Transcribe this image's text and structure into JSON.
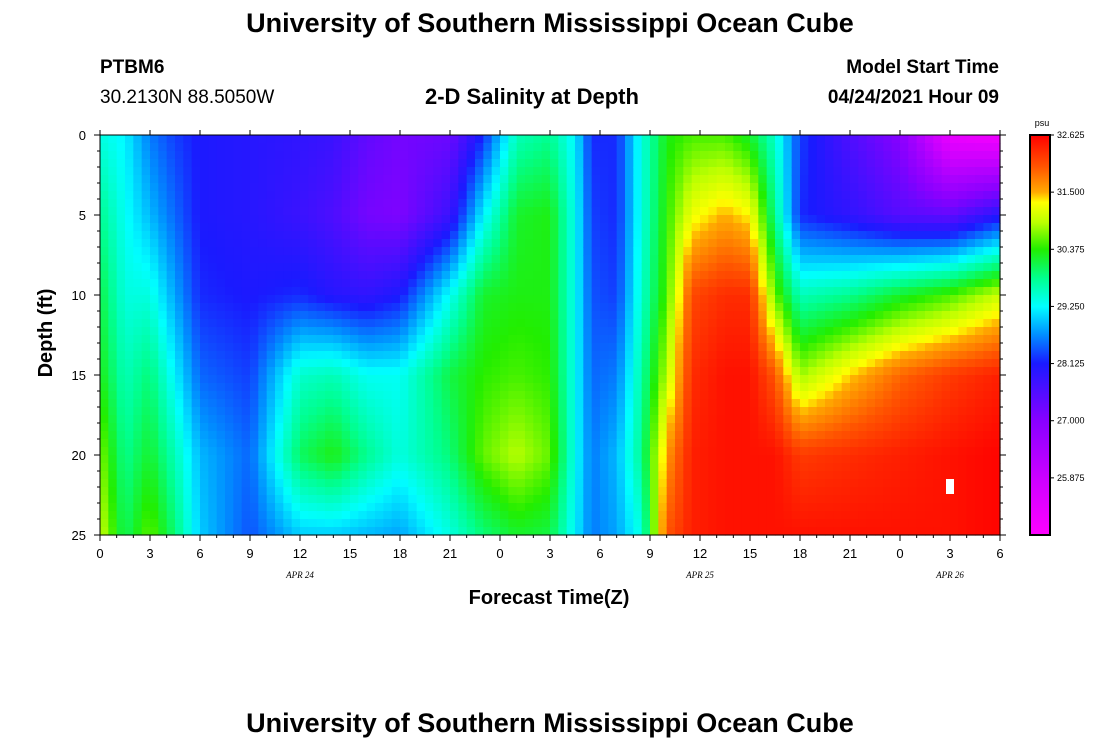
{
  "header": {
    "title": "University of Southern Mississippi Ocean Cube",
    "station_id": "PTBM6",
    "station_coords": "30.2130N  88.5050W",
    "chart_title": "2-D Salinity at Depth",
    "model_start_label": "Model Start Time",
    "model_start_value": "04/24/2021 Hour 09"
  },
  "footer": {
    "title": "University of Southern Mississippi Ocean Cube"
  },
  "chart_data": {
    "type": "heatmap",
    "title": "2-D Salinity at Depth",
    "xlabel": "Forecast Time(Z)",
    "ylabel": "Depth (ft)",
    "x_ticks_hours": [
      0,
      3,
      6,
      9,
      12,
      15,
      18,
      21,
      24,
      27,
      30,
      33,
      36,
      39,
      42,
      45,
      48,
      51,
      54
    ],
    "x_tick_labels": [
      "0",
      "3",
      "6",
      "9",
      "12",
      "15",
      "18",
      "21",
      "0",
      "3",
      "6",
      "9",
      "12",
      "15",
      "18",
      "21",
      "0",
      "3",
      "6"
    ],
    "xlim_hours": [
      0,
      54
    ],
    "date_labels": [
      {
        "text": "APR  24",
        "hour": 12
      },
      {
        "text": "APR  25",
        "hour": 36
      },
      {
        "text": "APR  26",
        "hour": 51
      }
    ],
    "y_ticks": [
      0,
      5,
      10,
      15,
      20,
      25
    ],
    "ylim": [
      0,
      25
    ],
    "y_inverted": true,
    "units": "psu",
    "colorbar": {
      "min": 24.75,
      "max": 32.625,
      "tick_values": [
        32.625,
        31.5,
        30.375,
        29.25,
        28.125,
        27.0,
        25.875
      ],
      "tick_labels": [
        "32.625",
        "31.500",
        "30.375",
        "29.250",
        "28.125",
        "27.000",
        "25.875"
      ],
      "stops": [
        {
          "value": 24.75,
          "color": "#ff00ff"
        },
        {
          "value": 25.875,
          "color": "#cc00ff"
        },
        {
          "value": 27.0,
          "color": "#8800ff"
        },
        {
          "value": 28.125,
          "color": "#1a1aff"
        },
        {
          "value": 28.7,
          "color": "#0090ff"
        },
        {
          "value": 29.25,
          "color": "#00ffff"
        },
        {
          "value": 29.8,
          "color": "#00ff90"
        },
        {
          "value": 30.375,
          "color": "#22ee00"
        },
        {
          "value": 30.9,
          "color": "#bbff00"
        },
        {
          "value": 31.3,
          "color": "#ffff00"
        },
        {
          "value": 31.5,
          "color": "#ffaa00"
        },
        {
          "value": 32.0,
          "color": "#ff5500"
        },
        {
          "value": 32.625,
          "color": "#ff0000"
        }
      ]
    },
    "salinity_profiles": [
      {
        "hour": 0,
        "depths": [
          0,
          5,
          10,
          15,
          20,
          25
        ],
        "values": [
          29.4,
          29.8,
          30.1,
          30.3,
          30.7,
          31.0
        ]
      },
      {
        "hour": 1.5,
        "depths": [
          0,
          5,
          10,
          15,
          20,
          25
        ],
        "values": [
          29.2,
          29.3,
          29.4,
          29.6,
          29.8,
          30.0
        ]
      },
      {
        "hour": 3,
        "depths": [
          0,
          5,
          10,
          15,
          20,
          25
        ],
        "values": [
          28.6,
          28.9,
          29.4,
          29.9,
          30.2,
          30.6
        ]
      },
      {
        "hour": 4.5,
        "depths": [
          0,
          5,
          10,
          15,
          20,
          25
        ],
        "values": [
          28.3,
          28.5,
          28.8,
          29.2,
          29.6,
          29.9
        ]
      },
      {
        "hour": 6,
        "depths": [
          0,
          5,
          10,
          15,
          20,
          25
        ],
        "values": [
          28.1,
          28.1,
          28.2,
          28.5,
          28.9,
          29.0
        ]
      },
      {
        "hour": 9,
        "depths": [
          0,
          5,
          10,
          15,
          20,
          25
        ],
        "values": [
          28.0,
          28.0,
          28.1,
          28.3,
          28.5,
          28.4
        ]
      },
      {
        "hour": 12,
        "depths": [
          0,
          5,
          10,
          15,
          20,
          25
        ],
        "values": [
          27.9,
          27.8,
          28.2,
          29.5,
          30.0,
          29.0
        ]
      },
      {
        "hour": 14,
        "depths": [
          0,
          5,
          10,
          15,
          20,
          25
        ],
        "values": [
          27.8,
          27.6,
          28.0,
          29.6,
          30.3,
          29.0
        ]
      },
      {
        "hour": 16,
        "depths": [
          0,
          5,
          10,
          15,
          20,
          25
        ],
        "values": [
          27.4,
          27.2,
          27.9,
          29.3,
          29.8,
          28.9
        ]
      },
      {
        "hour": 18,
        "depths": [
          0,
          5,
          10,
          15,
          20,
          25
        ],
        "values": [
          27.2,
          27.1,
          28.1,
          29.3,
          29.4,
          28.8
        ]
      },
      {
        "hour": 21,
        "depths": [
          0,
          5,
          10,
          15,
          20,
          25
        ],
        "values": [
          27.3,
          27.8,
          29.3,
          30.1,
          29.9,
          29.4
        ]
      },
      {
        "hour": 23,
        "depths": [
          0,
          5,
          10,
          15,
          20,
          25
        ],
        "values": [
          28.2,
          29.2,
          30.2,
          30.4,
          30.6,
          29.9
        ]
      },
      {
        "hour": 25,
        "depths": [
          0,
          5,
          10,
          15,
          20,
          25
        ],
        "values": [
          29.6,
          30.2,
          30.3,
          30.5,
          30.9,
          30.2
        ]
      },
      {
        "hour": 27,
        "depths": [
          0,
          5,
          10,
          15,
          20,
          25
        ],
        "values": [
          29.8,
          30.3,
          30.3,
          30.4,
          30.6,
          30.1
        ]
      },
      {
        "hour": 28.5,
        "depths": [
          0,
          5,
          10,
          15,
          20,
          25
        ],
        "values": [
          29.2,
          29.3,
          29.3,
          29.3,
          29.3,
          29.2
        ]
      },
      {
        "hour": 29.5,
        "depths": [
          0,
          5,
          10,
          15,
          20,
          25
        ],
        "values": [
          28.2,
          28.3,
          28.4,
          28.5,
          28.6,
          28.6
        ]
      },
      {
        "hour": 31,
        "depths": [
          0,
          5,
          10,
          15,
          20,
          25
        ],
        "values": [
          28.2,
          28.2,
          28.3,
          28.6,
          28.9,
          28.8
        ]
      },
      {
        "hour": 32.5,
        "depths": [
          0,
          5,
          10,
          15,
          20,
          25
        ],
        "values": [
          29.4,
          29.4,
          29.5,
          29.7,
          29.8,
          29.4
        ]
      },
      {
        "hour": 34,
        "depths": [
          0,
          5,
          10,
          15,
          20,
          25
        ],
        "values": [
          30.3,
          30.4,
          30.5,
          30.9,
          31.6,
          32.0
        ]
      },
      {
        "hour": 35.5,
        "depths": [
          0,
          5,
          10,
          15,
          20,
          25
        ],
        "values": [
          30.5,
          31.2,
          32.1,
          32.3,
          32.4,
          32.4
        ]
      },
      {
        "hour": 37.5,
        "depths": [
          0,
          5,
          10,
          15,
          20,
          25
        ],
        "values": [
          30.5,
          31.5,
          32.3,
          32.5,
          32.5,
          32.5
        ]
      },
      {
        "hour": 39,
        "depths": [
          0,
          5,
          10,
          15,
          20,
          25
        ],
        "values": [
          30.2,
          31.3,
          32.3,
          32.5,
          32.5,
          32.5
        ]
      },
      {
        "hour": 40.5,
        "depths": [
          0,
          5,
          10,
          15,
          20,
          25
        ],
        "values": [
          29.5,
          29.8,
          30.6,
          32.0,
          32.5,
          32.5
        ]
      },
      {
        "hour": 42,
        "depths": [
          0,
          5,
          10,
          15,
          20,
          25
        ],
        "values": [
          28.3,
          28.2,
          29.6,
          30.8,
          32.2,
          32.5
        ]
      },
      {
        "hour": 45,
        "depths": [
          0,
          5,
          10,
          15,
          20,
          25
        ],
        "values": [
          27.6,
          27.9,
          29.8,
          31.4,
          32.3,
          32.5
        ]
      },
      {
        "hour": 48,
        "depths": [
          0,
          5,
          10,
          15,
          20,
          25
        ],
        "values": [
          27.0,
          27.5,
          30.2,
          31.9,
          32.4,
          32.5
        ]
      },
      {
        "hour": 51,
        "depths": [
          0,
          5,
          10,
          15,
          20,
          25
        ],
        "values": [
          25.2,
          27.4,
          30.5,
          32.2,
          32.5,
          32.5
        ]
      },
      {
        "hour": 54,
        "depths": [
          0,
          5,
          10,
          15,
          20,
          25
        ],
        "values": [
          25.0,
          28.0,
          31.0,
          32.4,
          32.6,
          32.6
        ]
      }
    ]
  }
}
